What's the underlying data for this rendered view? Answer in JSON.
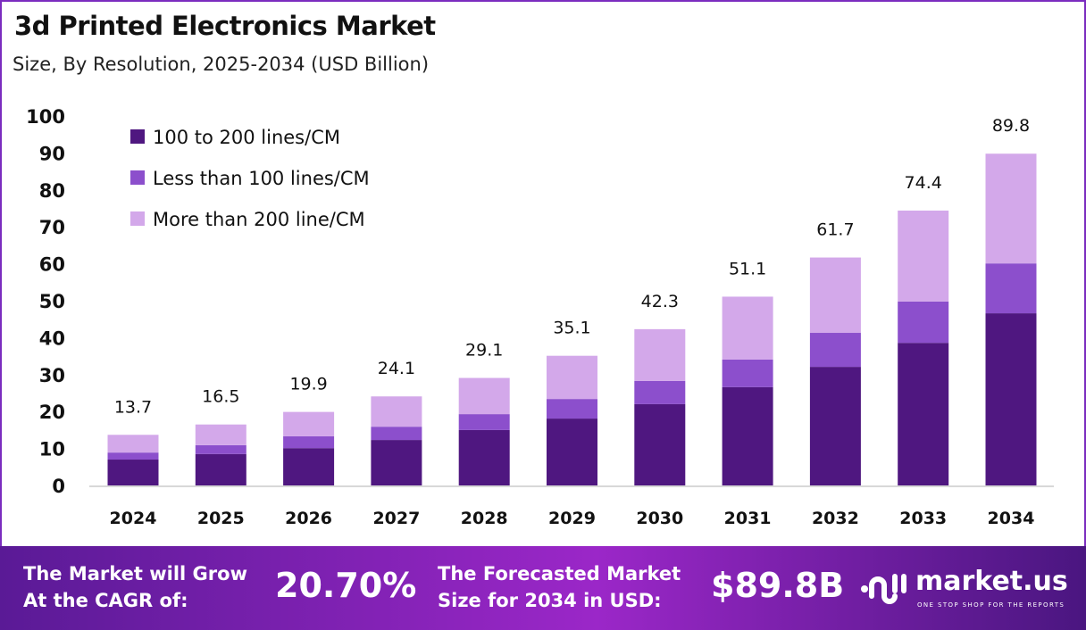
{
  "chart_data": {
    "type": "bar",
    "stacked": true,
    "title": "3d Printed Electronics Market",
    "subtitle": "Size, By Resolution, 2025-2034 (USD Billion)",
    "xlabel": "",
    "ylabel": "",
    "ylim": [
      0,
      100
    ],
    "yticks": [
      0,
      10,
      20,
      30,
      40,
      50,
      60,
      70,
      80,
      90,
      100
    ],
    "grid": false,
    "legend_position": "top-left",
    "categories": [
      "2024",
      "2025",
      "2026",
      "2027",
      "2028",
      "2029",
      "2030",
      "2031",
      "2032",
      "2033",
      "2034"
    ],
    "series": [
      {
        "name": "100 to 200 lines/CM",
        "color": "#4f1780",
        "values": [
          7.0,
          8.5,
          10.1,
          12.3,
          15.0,
          18.1,
          22.0,
          26.6,
          32.1,
          38.6,
          46.6
        ]
      },
      {
        "name": " Less than 100 lines/CM",
        "color": "#8c4fcc",
        "values": [
          1.9,
          2.4,
          3.2,
          3.6,
          4.3,
          5.3,
          6.3,
          7.5,
          9.2,
          11.2,
          13.5
        ]
      },
      {
        "name": "More than 200 line/CM",
        "color": "#d3a8ea",
        "values": [
          4.8,
          5.6,
          6.6,
          8.2,
          9.8,
          11.7,
          14.0,
          17.0,
          20.4,
          24.6,
          29.7
        ]
      }
    ],
    "totals": [
      "13.7",
      "16.5",
      "19.9",
      "24.1",
      "29.1",
      "35.1",
      "42.3",
      "51.1",
      "61.7",
      "74.4",
      "89.8"
    ]
  },
  "banner": {
    "cagr_label_1": "The Market will Grow",
    "cagr_label_2": "At the CAGR of:",
    "cagr_value": "20.70%",
    "forecast_label_1": "The Forecasted Market",
    "forecast_label_2": "Size for 2034 in USD:",
    "forecast_value": "$89.8B",
    "logo_name": "market.us",
    "logo_tagline": "ONE STOP SHOP FOR THE REPORTS"
  }
}
